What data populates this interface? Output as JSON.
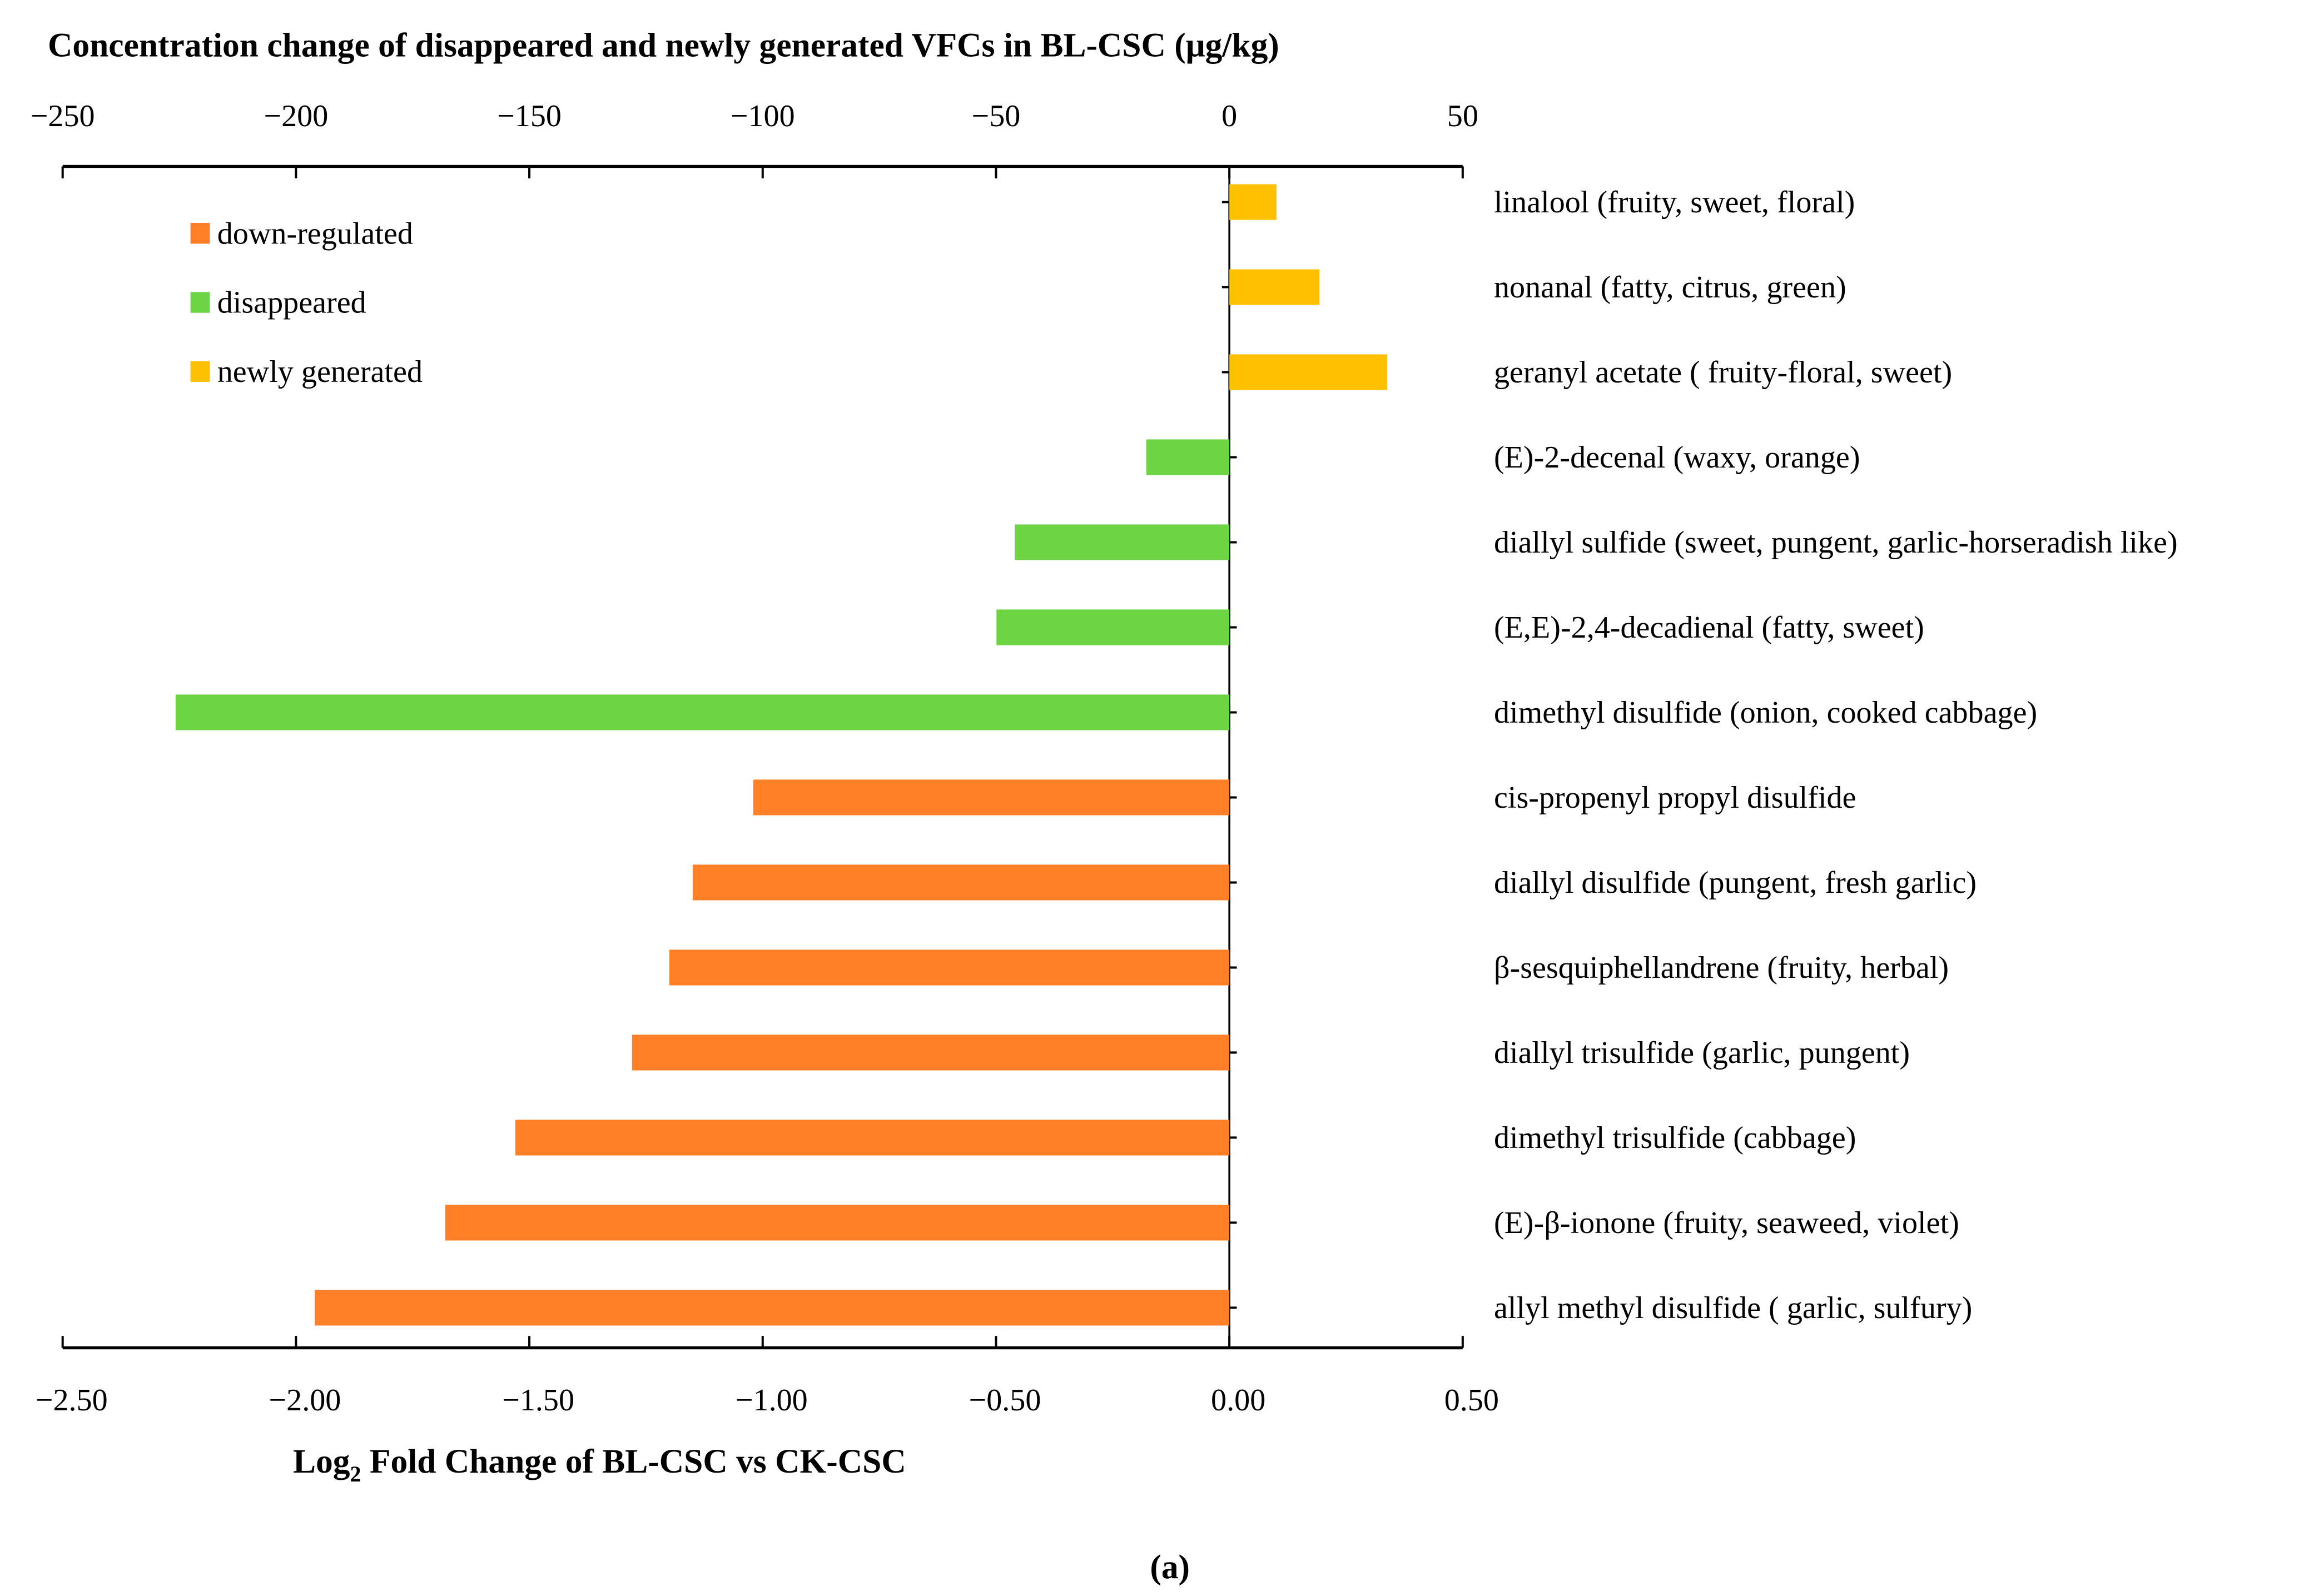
{
  "chart_data": {
    "type": "bar",
    "orientation": "horizontal",
    "title": "Concentration change of disappeared and newly generated VFCs in BL-CSC (μg/kg)",
    "xlabel": "Log2 Fold Change of BL-CSC vs CK-CSC",
    "xlabel_main": "Log",
    "xlabel_sub": "2",
    "xlabel_rest": " Fold Change of BL-CSC vs CK-CSC",
    "caption": "(a)",
    "top_axis": {
      "range": [
        -250,
        50
      ],
      "ticks": [
        "−250",
        "−200",
        "−150",
        "−100",
        "−50",
        "0",
        "50"
      ],
      "unit": "μg/kg"
    },
    "bottom_axis": {
      "range": [
        -2.5,
        0.5
      ],
      "ticks": [
        "−2.50",
        "−2.00",
        "−1.50",
        "−1.00",
        "−0.50",
        "0.00",
        "0.50"
      ]
    },
    "legend": {
      "placement": "top-left",
      "items": [
        {
          "label": "down-regulated",
          "color": "#FF7F27"
        },
        {
          "label": "disappeared",
          "color": "#6DD443"
        },
        {
          "label": "newly generated",
          "color": "#FFC000"
        }
      ]
    },
    "categories": [
      "linalool (fruity, sweet, floral)",
      "nonanal (fatty, citrus, green)",
      "geranyl acetate ( fruity-floral, sweet)",
      "(E)-2-decenal (waxy, orange)",
      "diallyl sulfide (sweet, pungent, garlic-horseradish like)",
      "(E,E)-2,4-decadienal (fatty, sweet)",
      "dimethyl disulfide (onion, cooked cabbage)",
      "cis-propenyl propyl disulfide",
      "diallyl disulfide (pungent, fresh garlic)",
      "β-sesquiphellandrene (fruity, herbal)",
      "diallyl trisulfide (garlic, pungent)",
      "dimethyl trisulfide (cabbage)",
      "(E)-β-ionone (fruity, seaweed, violet)",
      "allyl methyl disulfide ( garlic, sulfury)"
    ],
    "series": [
      {
        "name": "newly generated",
        "axis": "top (μg/kg)",
        "values": [
          10.1,
          19.3,
          33.8,
          null,
          null,
          null,
          null,
          null,
          null,
          null,
          null,
          null,
          null,
          null
        ]
      },
      {
        "name": "disappeared",
        "axis": "top (μg/kg)",
        "values": [
          null,
          null,
          null,
          -17.8,
          -46.0,
          -49.9,
          -225.8,
          null,
          null,
          null,
          null,
          null,
          null,
          null
        ]
      },
      {
        "name": "down-regulated",
        "axis": "bottom (log2 FC)",
        "values": [
          null,
          null,
          null,
          null,
          null,
          null,
          null,
          -1.02,
          -1.15,
          -1.2,
          -1.28,
          -1.53,
          -1.68,
          -1.96
        ]
      }
    ],
    "grid": false
  }
}
